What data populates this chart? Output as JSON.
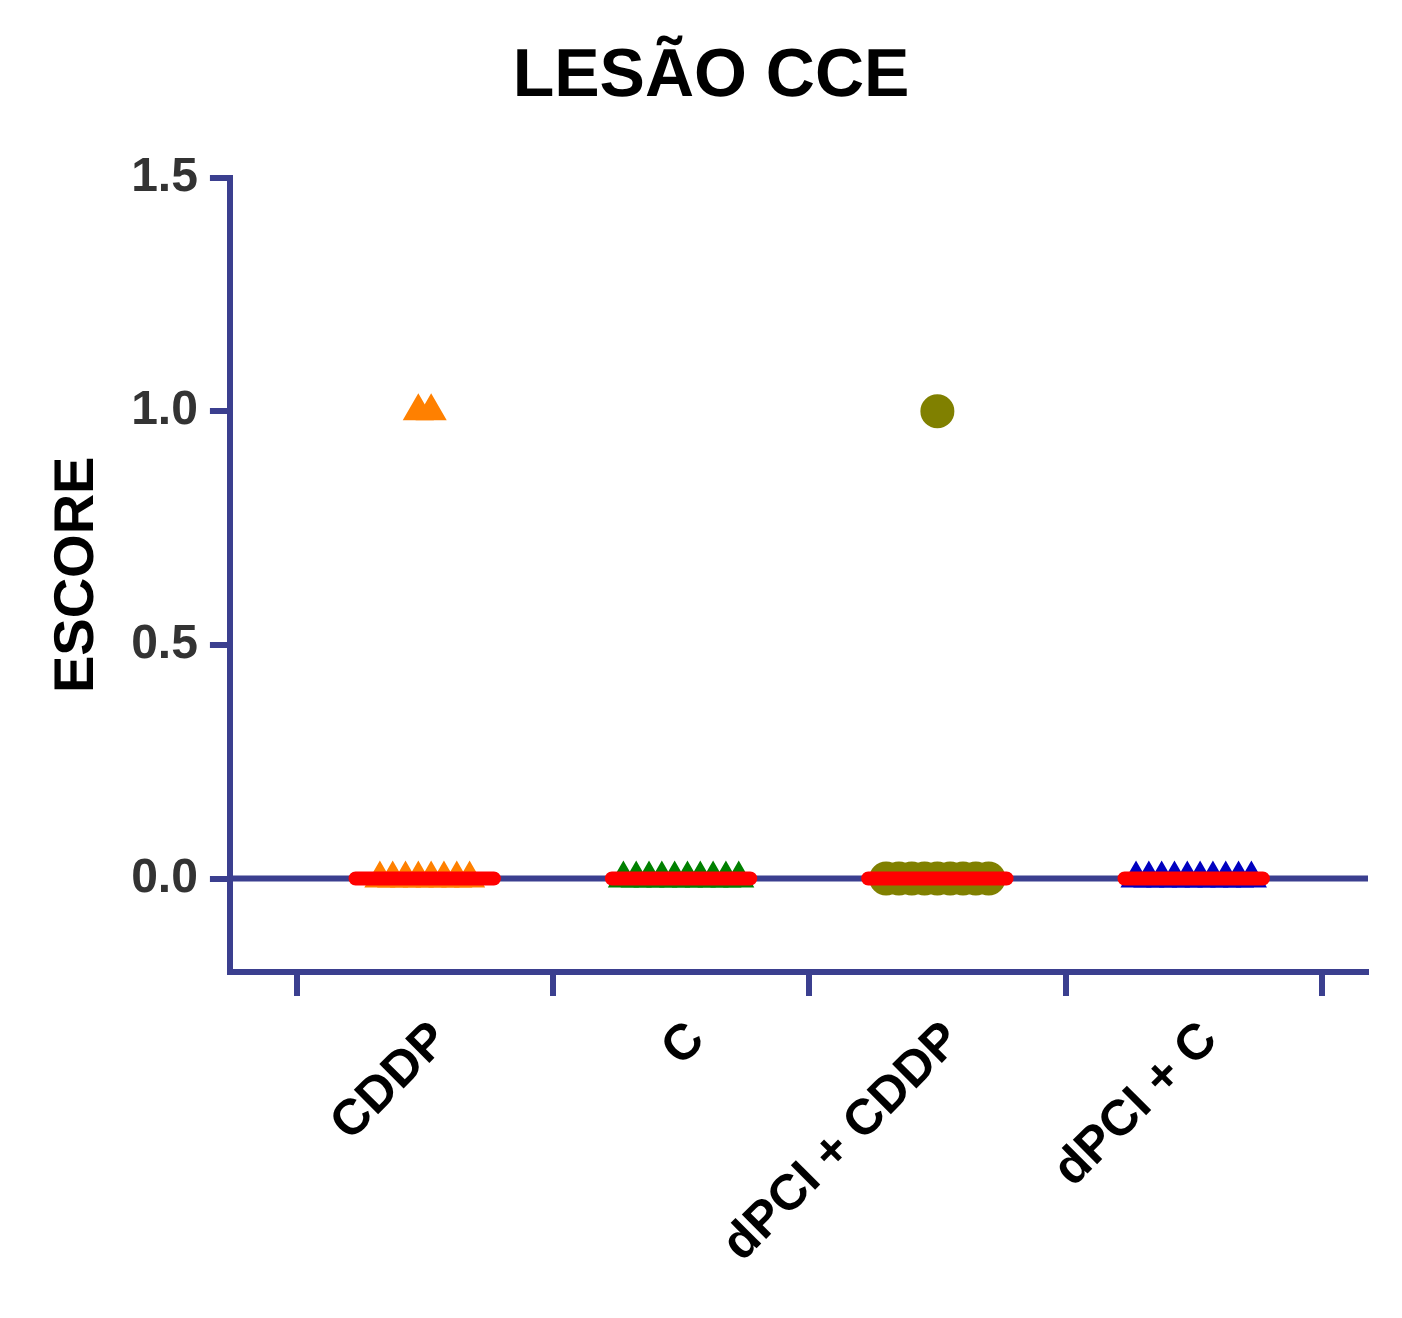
{
  "chart_data": {
    "type": "scatter",
    "title": "LESÃO CCE",
    "ylabel": "ESCORE",
    "categories": [
      "CDDP",
      "C",
      "dPCI + CDDP",
      "dPCI + C"
    ],
    "ylim": [
      -0.2,
      1.5
    ],
    "yticks": [
      {
        "value": 0,
        "label": "0.0"
      },
      {
        "value": 0.5,
        "label": "0.5"
      },
      {
        "value": 1,
        "label": "1.0"
      },
      {
        "value": 1.5,
        "label": "1.5"
      }
    ],
    "grid": false,
    "legend": false,
    "ref_lines": [
      {
        "axis": "y",
        "value": 0,
        "color": "#3b3f8f"
      }
    ],
    "series": [
      {
        "marker": "triangle",
        "color": "#ff8000",
        "x": [
          "CDDP",
          "CDDP",
          "CDDP",
          "CDDP",
          "CDDP",
          "CDDP",
          "CDDP",
          "CDDP",
          "CDDP",
          "CDDP"
        ],
        "values": [
          1,
          1,
          0,
          0,
          0,
          0,
          0,
          0,
          0,
          0
        ]
      },
      {
        "marker": "triangle",
        "color": "#008000",
        "x": [
          "C",
          "C",
          "C",
          "C",
          "C",
          "C",
          "C",
          "C",
          "C",
          "C"
        ],
        "values": [
          0,
          0,
          0,
          0,
          0,
          0,
          0,
          0,
          0,
          0
        ]
      },
      {
        "marker": "circle",
        "color": "#808000",
        "x": [
          "dPCI + CDDP",
          "dPCI + CDDP",
          "dPCI + CDDP",
          "dPCI + CDDP",
          "dPCI + CDDP",
          "dPCI + CDDP",
          "dPCI + CDDP",
          "dPCI + CDDP",
          "dPCI + CDDP",
          "dPCI + CDDP"
        ],
        "values": [
          1,
          0,
          0,
          0,
          0,
          0,
          0,
          0,
          0,
          0
        ]
      },
      {
        "marker": "triangle",
        "color": "#0000c0",
        "x": [
          "dPCI + C",
          "dPCI + C",
          "dPCI + C",
          "dPCI + C",
          "dPCI + C",
          "dPCI + C",
          "dPCI + C",
          "dPCI + C",
          "dPCI + C",
          "dPCI + C"
        ],
        "values": [
          0,
          0,
          0,
          0,
          0,
          0,
          0,
          0,
          0,
          0
        ]
      },
      {
        "type": "box",
        "color": "#ff0000",
        "boxes": [
          {
            "low": 0,
            "q1": 0,
            "median": 0,
            "q3": 0,
            "high": 0
          },
          {
            "low": 0,
            "q1": 0,
            "median": 0,
            "q3": 0,
            "high": 0
          },
          {
            "low": 0,
            "q1": 0,
            "median": 0,
            "q3": 0,
            "high": 0
          },
          {
            "low": 0,
            "q1": 0,
            "median": 0,
            "q3": 0,
            "high": 0
          }
        ]
      }
    ]
  }
}
